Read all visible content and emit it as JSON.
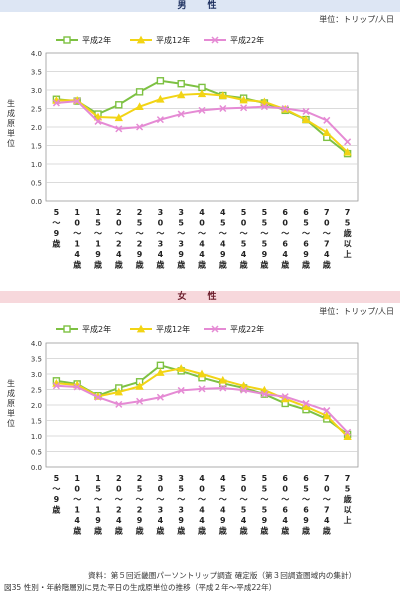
{
  "panels": [
    {
      "header": "男　性",
      "unit": "単位：トリップ/人日"
    },
    {
      "header": "女　性",
      "unit": "単位：トリップ/人日"
    }
  ],
  "source_note": "資料：第５回近畿圏パーソントリップ調査 確定版（第３回調査圏域内の集計）",
  "caption": "図35 性別・年齢階層別に見た平日の生成原単位の推移（平成２年〜平成22年）",
  "chart_data": [
    {
      "type": "line",
      "title": "男　性",
      "ylabel": "生成原単位",
      "xlabel": "",
      "ylim": [
        0,
        4.0
      ],
      "yticks": [
        "0.0",
        "0.5",
        "1.0",
        "1.5",
        "2.0",
        "2.5",
        "3.0",
        "3.5",
        "4.0"
      ],
      "grid": true,
      "legend": "top",
      "categories": [
        [
          "5",
          "〜",
          "9",
          "歳"
        ],
        [
          "1",
          "0",
          "〜",
          "1",
          "4",
          "歳"
        ],
        [
          "1",
          "5",
          "〜",
          "1",
          "9",
          "歳"
        ],
        [
          "2",
          "0",
          "〜",
          "2",
          "4",
          "歳"
        ],
        [
          "2",
          "5",
          "〜",
          "2",
          "9",
          "歳"
        ],
        [
          "3",
          "0",
          "〜",
          "3",
          "4",
          "歳"
        ],
        [
          "3",
          "5",
          "〜",
          "3",
          "9",
          "歳"
        ],
        [
          "4",
          "0",
          "〜",
          "4",
          "4",
          "歳"
        ],
        [
          "4",
          "5",
          "〜",
          "4",
          "9",
          "歳"
        ],
        [
          "5",
          "0",
          "〜",
          "5",
          "4",
          "歳"
        ],
        [
          "5",
          "5",
          "〜",
          "5",
          "9",
          "歳"
        ],
        [
          "6",
          "0",
          "〜",
          "6",
          "4",
          "歳"
        ],
        [
          "6",
          "5",
          "〜",
          "6",
          "9",
          "歳"
        ],
        [
          "7",
          "0",
          "〜",
          "7",
          "4",
          "歳"
        ],
        [
          "7",
          "5",
          "歳",
          "以",
          "上"
        ]
      ],
      "series": [
        {
          "name": "平成2年",
          "color": "#7dc142",
          "marker": "square",
          "values": [
            2.75,
            2.7,
            2.35,
            2.6,
            2.95,
            3.25,
            3.17,
            3.07,
            2.85,
            2.78,
            2.65,
            2.45,
            2.2,
            1.72,
            1.28
          ]
        },
        {
          "name": "平成12年",
          "color": "#f2d415",
          "marker": "triangle",
          "values": [
            2.72,
            2.72,
            2.27,
            2.25,
            2.55,
            2.75,
            2.87,
            2.9,
            2.85,
            2.73,
            2.68,
            2.48,
            2.2,
            1.85,
            1.32
          ]
        },
        {
          "name": "平成22年",
          "color": "#e58ad4",
          "marker": "cross",
          "values": [
            2.65,
            2.7,
            2.15,
            1.95,
            2.0,
            2.2,
            2.35,
            2.45,
            2.5,
            2.52,
            2.55,
            2.5,
            2.42,
            2.18,
            1.6
          ]
        }
      ]
    },
    {
      "type": "line",
      "title": "女　性",
      "ylabel": "生成原単位",
      "xlabel": "",
      "ylim": [
        0,
        4.0
      ],
      "yticks": [
        "0.0",
        "0.5",
        "1.0",
        "1.5",
        "2.0",
        "2.5",
        "3.0",
        "3.5",
        "4.0"
      ],
      "grid": true,
      "legend": "top",
      "categories": [
        [
          "5",
          "〜",
          "9",
          "歳"
        ],
        [
          "1",
          "0",
          "〜",
          "1",
          "4",
          "歳"
        ],
        [
          "1",
          "5",
          "〜",
          "1",
          "9",
          "歳"
        ],
        [
          "2",
          "0",
          "〜",
          "2",
          "4",
          "歳"
        ],
        [
          "2",
          "5",
          "〜",
          "2",
          "9",
          "歳"
        ],
        [
          "3",
          "0",
          "〜",
          "3",
          "4",
          "歳"
        ],
        [
          "3",
          "5",
          "〜",
          "3",
          "9",
          "歳"
        ],
        [
          "4",
          "0",
          "〜",
          "4",
          "4",
          "歳"
        ],
        [
          "4",
          "5",
          "〜",
          "4",
          "9",
          "歳"
        ],
        [
          "5",
          "0",
          "〜",
          "5",
          "4",
          "歳"
        ],
        [
          "5",
          "5",
          "〜",
          "5",
          "9",
          "歳"
        ],
        [
          "6",
          "0",
          "〜",
          "6",
          "4",
          "歳"
        ],
        [
          "6",
          "5",
          "〜",
          "6",
          "9",
          "歳"
        ],
        [
          "7",
          "0",
          "〜",
          "7",
          "4",
          "歳"
        ],
        [
          "7",
          "5",
          "歳",
          "以",
          "上"
        ]
      ],
      "series": [
        {
          "name": "平成2年",
          "color": "#7dc142",
          "marker": "square",
          "values": [
            2.78,
            2.68,
            2.3,
            2.55,
            2.75,
            3.28,
            3.1,
            2.88,
            2.7,
            2.55,
            2.35,
            2.05,
            1.85,
            1.55,
            1.05
          ]
        },
        {
          "name": "平成12年",
          "color": "#f2d415",
          "marker": "triangle",
          "values": [
            2.7,
            2.65,
            2.28,
            2.42,
            2.6,
            3.05,
            3.18,
            3.0,
            2.8,
            2.62,
            2.48,
            2.2,
            1.95,
            1.65,
            0.98
          ]
        },
        {
          "name": "平成22年",
          "color": "#e58ad4",
          "marker": "cross",
          "values": [
            2.62,
            2.58,
            2.25,
            2.02,
            2.12,
            2.25,
            2.47,
            2.52,
            2.55,
            2.48,
            2.35,
            2.27,
            2.05,
            1.82,
            1.12
          ]
        }
      ]
    }
  ]
}
